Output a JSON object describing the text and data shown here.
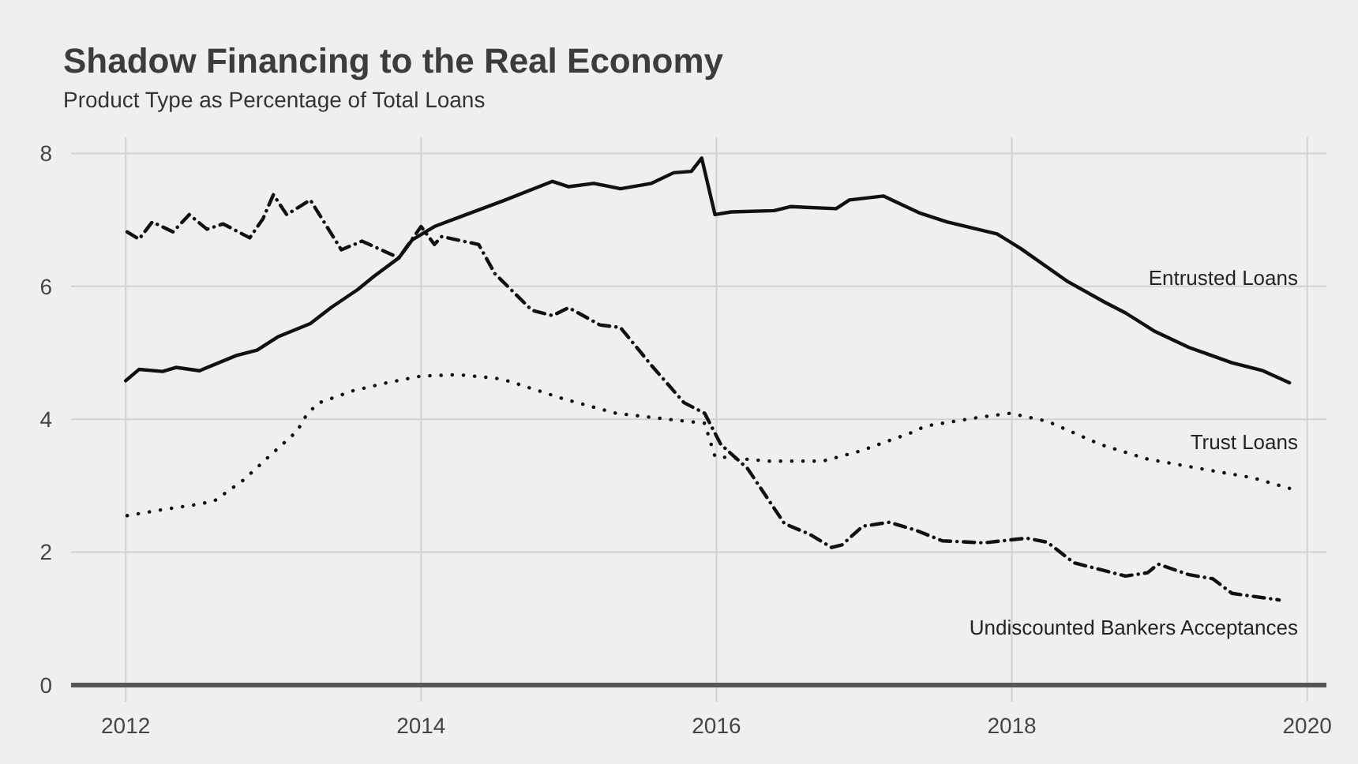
{
  "chart_data": {
    "type": "line",
    "title": "Shadow Financing to the Real Economy",
    "subtitle": "Product Type as Percentage of Total Loans",
    "xlim": [
      2011.63,
      2020.13
    ],
    "xticks": [
      2012,
      2014,
      2016,
      2018,
      2020
    ],
    "ylim": [
      -0.25,
      8.25
    ],
    "yticks": [
      0,
      2,
      4,
      6,
      8
    ],
    "grid": true,
    "marker": "none",
    "series": [
      {
        "name": "Entrusted Loans",
        "color": "#111111",
        "line_style": "solid",
        "x": [
          2012.0,
          2012.09,
          2012.25,
          2012.34,
          2012.5,
          2012.75,
          2012.89,
          2013.03,
          2013.25,
          2013.39,
          2013.57,
          2013.68,
          2013.85,
          2013.94,
          2014.09,
          2014.28,
          2014.57,
          2014.89,
          2015.0,
          2015.17,
          2015.35,
          2015.56,
          2015.71,
          2015.83,
          2015.9,
          2015.99,
          2016.1,
          2016.39,
          2016.5,
          2016.81,
          2016.9,
          2017.13,
          2017.38,
          2017.56,
          2017.9,
          2018.06,
          2018.38,
          2018.63,
          2018.77,
          2018.97,
          2019.2,
          2019.49,
          2019.7,
          2019.88
        ],
        "values": [
          4.58,
          4.75,
          4.72,
          4.78,
          4.73,
          4.96,
          5.04,
          5.24,
          5.44,
          5.68,
          5.95,
          6.15,
          6.43,
          6.7,
          6.9,
          7.06,
          7.3,
          7.58,
          7.5,
          7.55,
          7.47,
          7.55,
          7.71,
          7.73,
          7.93,
          7.08,
          7.12,
          7.14,
          7.2,
          7.17,
          7.3,
          7.36,
          7.1,
          6.97,
          6.79,
          6.57,
          6.07,
          5.76,
          5.6,
          5.32,
          5.08,
          4.85,
          4.73,
          4.55
        ]
      },
      {
        "name": "Trust Loans",
        "color": "#111111",
        "line_style": "dotted",
        "x": [
          2012.01,
          2012.25,
          2012.49,
          2012.6,
          2012.8,
          2012.98,
          2013.16,
          2013.22,
          2013.3,
          2013.54,
          2013.77,
          2014.0,
          2014.25,
          2014.5,
          2014.6,
          2014.96,
          2015.32,
          2015.67,
          2015.92,
          2015.99,
          2016.35,
          2016.72,
          2016.97,
          2017.31,
          2017.42,
          2017.78,
          2017.99,
          2018.24,
          2018.6,
          2018.92,
          2019.27,
          2019.63,
          2019.88
        ],
        "values": [
          2.55,
          2.64,
          2.72,
          2.77,
          3.09,
          3.46,
          3.82,
          4.05,
          4.24,
          4.43,
          4.55,
          4.65,
          4.67,
          4.62,
          4.57,
          4.31,
          4.09,
          4.0,
          3.94,
          3.44,
          3.37,
          3.37,
          3.52,
          3.79,
          3.9,
          4.03,
          4.09,
          3.97,
          3.62,
          3.4,
          3.26,
          3.12,
          2.96
        ]
      },
      {
        "name": "Undiscounted Bankers Acceptances",
        "color": "#111111",
        "line_style": "dashed",
        "x": [
          2012.01,
          2012.09,
          2012.18,
          2012.32,
          2012.43,
          2012.55,
          2012.66,
          2012.84,
          2012.93,
          2013.0,
          2013.09,
          2013.25,
          2013.46,
          2013.6,
          2013.85,
          2014.0,
          2014.09,
          2014.14,
          2014.39,
          2014.5,
          2014.75,
          2014.89,
          2015.0,
          2015.21,
          2015.35,
          2015.56,
          2015.78,
          2015.92,
          2016.03,
          2016.21,
          2016.46,
          2016.63,
          2016.78,
          2016.85,
          2016.99,
          2017.17,
          2017.35,
          2017.53,
          2017.81,
          2018.1,
          2018.24,
          2018.42,
          2018.77,
          2018.92,
          2018.99,
          2019.2,
          2019.36,
          2019.49,
          2019.81
        ],
        "values": [
          6.82,
          6.71,
          6.97,
          6.82,
          7.08,
          6.86,
          6.94,
          6.73,
          7.02,
          7.38,
          7.08,
          7.3,
          6.55,
          6.68,
          6.43,
          6.9,
          6.63,
          6.75,
          6.63,
          6.19,
          5.64,
          5.56,
          5.68,
          5.42,
          5.38,
          4.81,
          4.25,
          4.09,
          3.62,
          3.26,
          2.43,
          2.27,
          2.07,
          2.11,
          2.39,
          2.45,
          2.33,
          2.17,
          2.14,
          2.21,
          2.15,
          1.84,
          1.64,
          1.69,
          1.82,
          1.66,
          1.6,
          1.38,
          1.28
        ]
      }
    ]
  }
}
